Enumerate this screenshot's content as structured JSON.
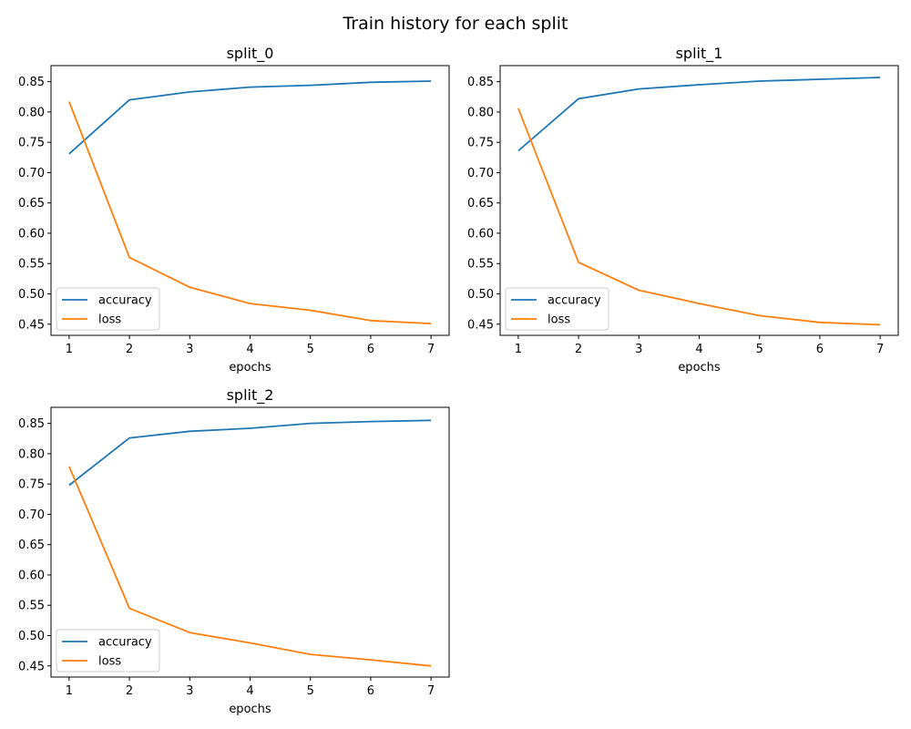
{
  "figure": {
    "title": "Train history for each split"
  },
  "colors": {
    "accuracy": "#1f77b4",
    "loss": "#ff7f0e"
  },
  "chart_data": [
    {
      "type": "line",
      "title": "split_0",
      "xlabel": "epochs",
      "ylabel": "",
      "x": [
        1,
        2,
        3,
        4,
        5,
        6,
        7
      ],
      "xlim": [
        0.7,
        7.3
      ],
      "ylim": [
        0.4316,
        0.8765
      ],
      "yticks": [
        "0.45",
        "0.50",
        "0.55",
        "0.60",
        "0.65",
        "0.70",
        "0.75",
        "0.80",
        "0.85"
      ],
      "xticks": [
        "1",
        "2",
        "3",
        "4",
        "5",
        "6",
        "7"
      ],
      "grid": false,
      "legend": "lower-left",
      "series": [
        {
          "name": "accuracy",
          "values": [
            0.731,
            0.82,
            0.833,
            0.841,
            0.844,
            0.849,
            0.851
          ]
        },
        {
          "name": "loss",
          "values": [
            0.817,
            0.56,
            0.511,
            0.484,
            0.473,
            0.456,
            0.451
          ]
        }
      ]
    },
    {
      "type": "line",
      "title": "split_1",
      "xlabel": "epochs",
      "ylabel": "",
      "x": [
        1,
        2,
        3,
        4,
        5,
        6,
        7
      ],
      "xlim": [
        0.7,
        7.3
      ],
      "ylim": [
        0.4316,
        0.8765
      ],
      "yticks": [
        "0.45",
        "0.50",
        "0.55",
        "0.60",
        "0.65",
        "0.70",
        "0.75",
        "0.80",
        "0.85"
      ],
      "xticks": [
        "1",
        "2",
        "3",
        "4",
        "5",
        "6",
        "7"
      ],
      "grid": false,
      "legend": "lower-left",
      "series": [
        {
          "name": "accuracy",
          "values": [
            0.736,
            0.822,
            0.838,
            0.845,
            0.851,
            0.854,
            0.857
          ]
        },
        {
          "name": "loss",
          "values": [
            0.806,
            0.552,
            0.506,
            0.484,
            0.464,
            0.453,
            0.449
          ]
        }
      ]
    },
    {
      "type": "line",
      "title": "split_2",
      "xlabel": "epochs",
      "ylabel": "",
      "x": [
        1,
        2,
        3,
        4,
        5,
        6,
        7
      ],
      "xlim": [
        0.7,
        7.3
      ],
      "ylim": [
        0.4316,
        0.8765
      ],
      "yticks": [
        "0.45",
        "0.50",
        "0.55",
        "0.60",
        "0.65",
        "0.70",
        "0.75",
        "0.80",
        "0.85"
      ],
      "xticks": [
        "1",
        "2",
        "3",
        "4",
        "5",
        "6",
        "7"
      ],
      "grid": false,
      "legend": "lower-left",
      "series": [
        {
          "name": "accuracy",
          "values": [
            0.748,
            0.826,
            0.837,
            0.842,
            0.85,
            0.853,
            0.855
          ]
        },
        {
          "name": "loss",
          "values": [
            0.779,
            0.545,
            0.505,
            0.488,
            0.469,
            0.46,
            0.45
          ]
        }
      ]
    }
  ]
}
